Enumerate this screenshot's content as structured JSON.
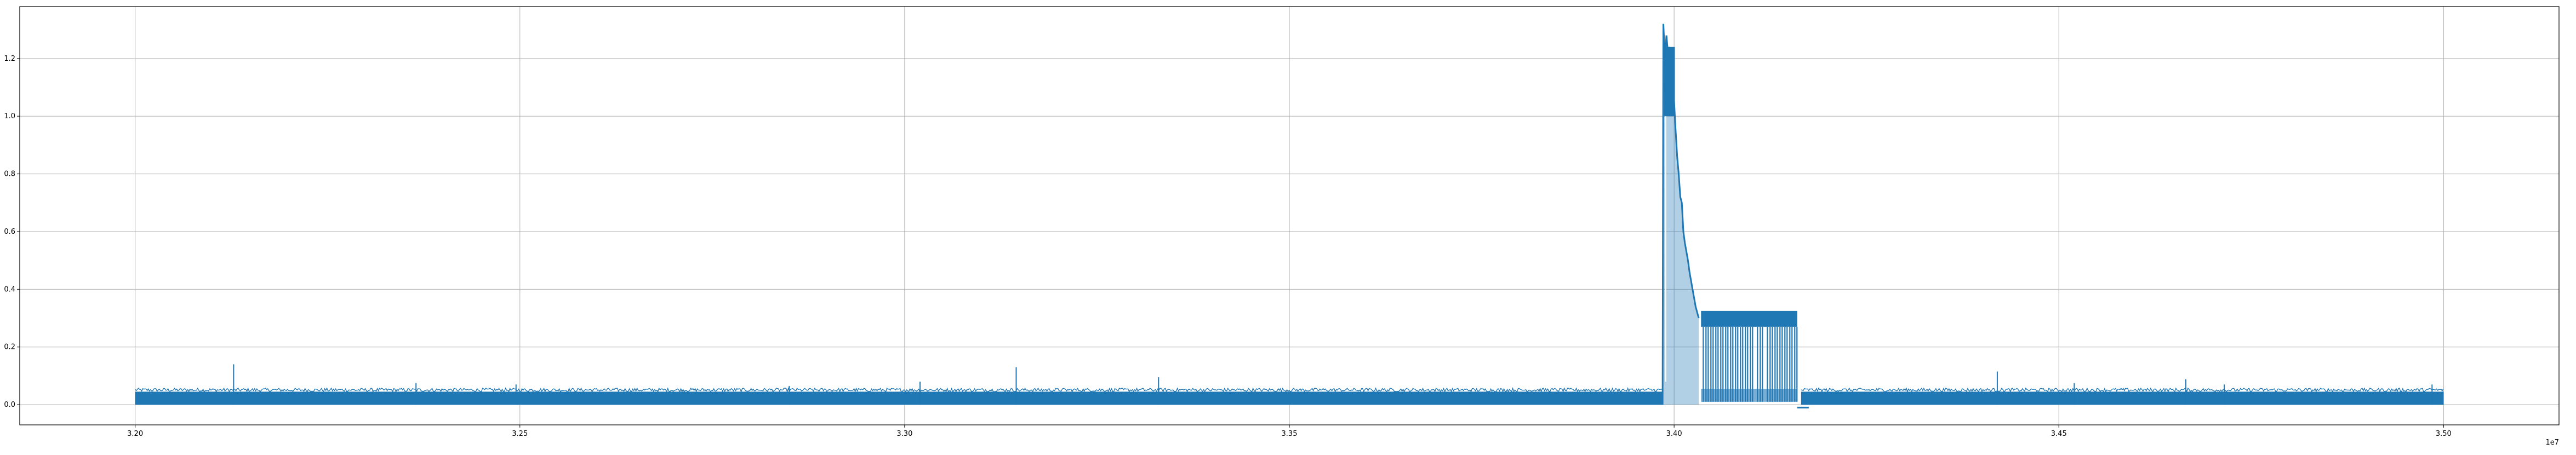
{
  "chart_data": {
    "type": "line",
    "title": "",
    "xlabel": "",
    "ylabel": "",
    "x_offset_label": "1e7",
    "xlim": [
      3.185,
      3.515
    ],
    "ylim": [
      -0.07,
      1.38
    ],
    "grid": true,
    "color": "#1f77b4",
    "x_ticks": [
      3.2,
      3.25,
      3.3,
      3.35,
      3.4,
      3.45,
      3.5
    ],
    "x_tick_labels": [
      "3.20",
      "3.25",
      "3.30",
      "3.35",
      "3.40",
      "3.45",
      "3.50"
    ],
    "y_ticks": [
      0.0,
      0.2,
      0.4,
      0.6,
      0.8,
      1.0,
      1.2
    ],
    "y_tick_labels": [
      "0.0",
      "0.2",
      "0.4",
      "0.6",
      "0.8",
      "1.0",
      "1.2"
    ],
    "series": [
      {
        "baseline_band": {
          "x_start": 3.2,
          "x_end": 3.3985,
          "low": 0.0,
          "high": 0.055
        },
        "baseline_band_2": {
          "x_start": 3.4165,
          "x_end": 3.5,
          "low": 0.0,
          "high": 0.055
        },
        "spikes": [
          {
            "x": 3.2128,
            "y": 0.14
          },
          {
            "x": 3.2365,
            "y": 0.075
          },
          {
            "x": 3.2495,
            "y": 0.07
          },
          {
            "x": 3.285,
            "y": 0.065
          },
          {
            "x": 3.302,
            "y": 0.08
          },
          {
            "x": 3.3145,
            "y": 0.13
          },
          {
            "x": 3.333,
            "y": 0.095
          },
          {
            "x": 3.442,
            "y": 0.115
          },
          {
            "x": 3.452,
            "y": 0.075
          },
          {
            "x": 3.4665,
            "y": 0.088
          },
          {
            "x": 3.4715,
            "y": 0.07
          },
          {
            "x": 3.4985,
            "y": 0.07
          }
        ],
        "peak_points": [
          [
            3.3985,
            0.0
          ],
          [
            3.3986,
            1.32
          ],
          [
            3.3988,
            1.2
          ],
          [
            3.399,
            1.28
          ],
          [
            3.3992,
            1.22
          ],
          [
            3.3994,
            1.24
          ],
          [
            3.3996,
            1.15
          ],
          [
            3.3998,
            1.2
          ],
          [
            3.4,
            1.05
          ],
          [
            3.4002,
            0.95
          ],
          [
            3.4004,
            0.86
          ],
          [
            3.4006,
            0.8
          ],
          [
            3.4008,
            0.72
          ],
          [
            3.401,
            0.7
          ],
          [
            3.4012,
            0.6
          ],
          [
            3.4014,
            0.56
          ],
          [
            3.4016,
            0.53
          ],
          [
            3.4018,
            0.5
          ],
          [
            3.402,
            0.46
          ],
          [
            3.4022,
            0.43
          ],
          [
            3.4024,
            0.4
          ],
          [
            3.4026,
            0.37
          ],
          [
            3.4028,
            0.34
          ],
          [
            3.403,
            0.32
          ],
          [
            3.4032,
            0.3
          ]
        ],
        "plateau_band": {
          "x_start": 3.4035,
          "x_end": 3.416,
          "low": 0.01,
          "high": 0.325,
          "step": 0.27
        },
        "dip": {
          "x_start": 3.416,
          "x_end": 3.4175,
          "y": -0.01
        }
      }
    ]
  }
}
